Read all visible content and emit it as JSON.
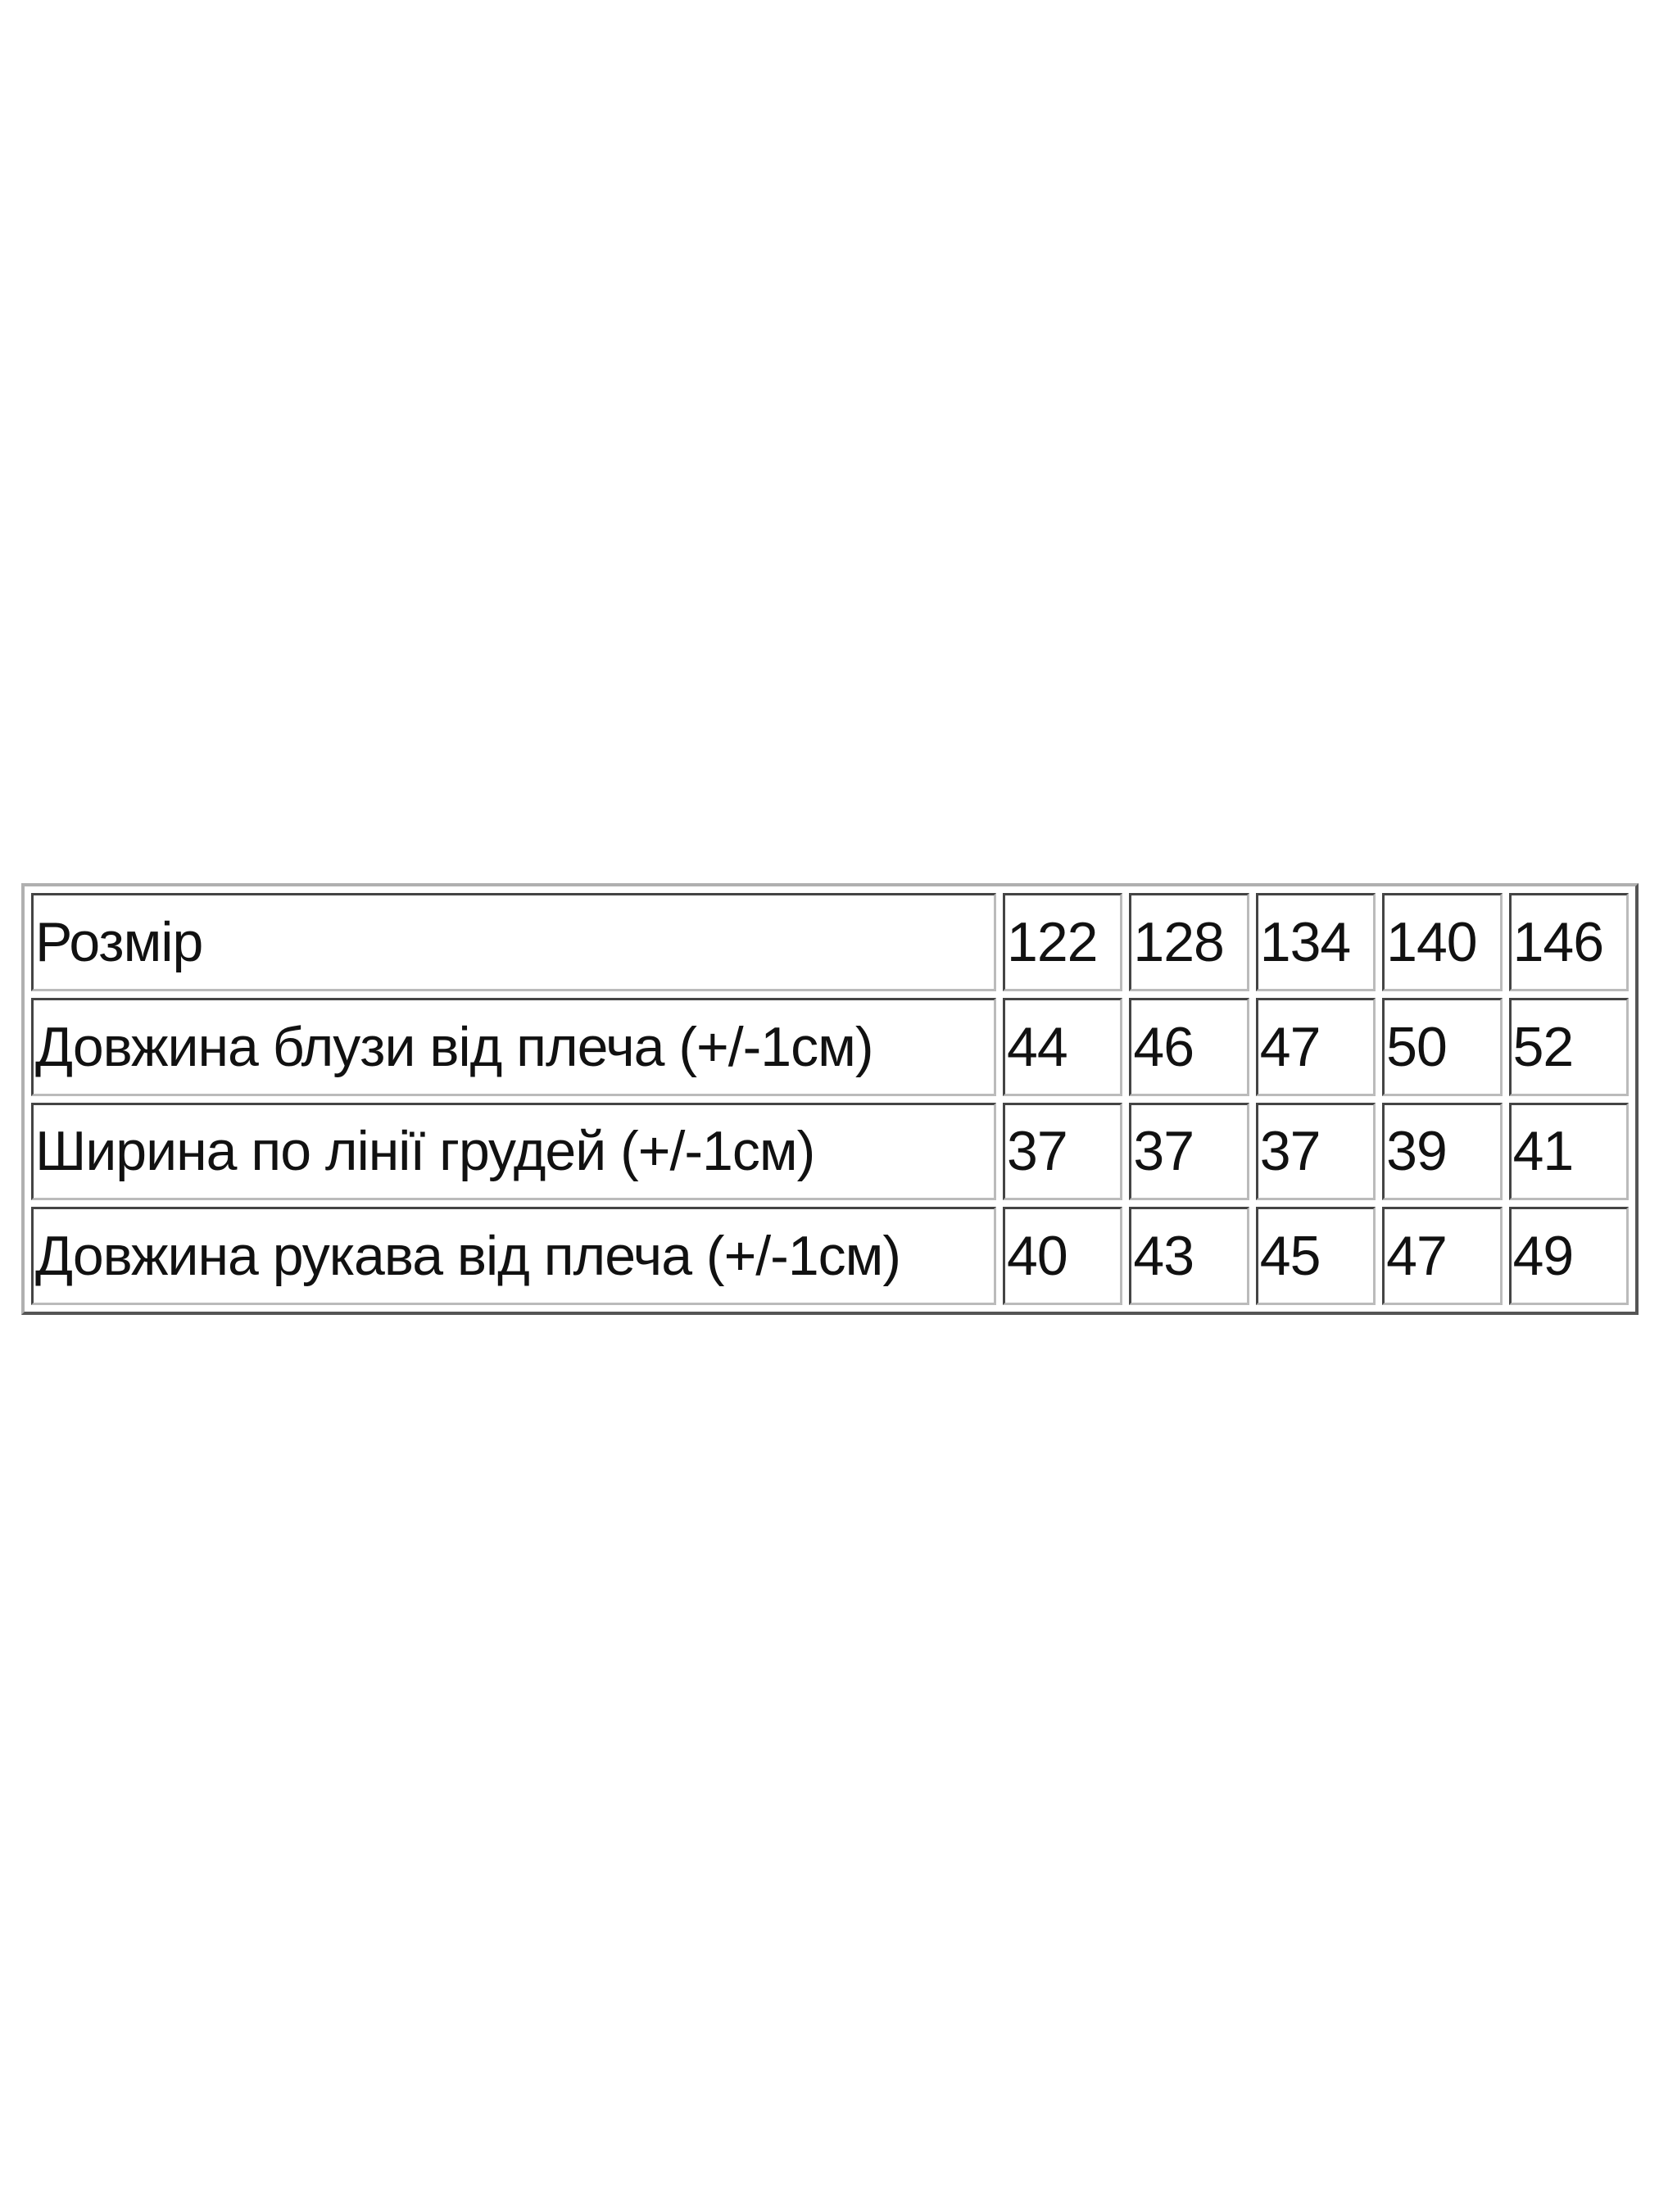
{
  "size_table": {
    "header": {
      "label": "Розмір",
      "sizes": [
        "122",
        "128",
        "134",
        "140",
        "146"
      ]
    },
    "rows": [
      {
        "label": "Довжина блузи від плеча (+/-1см)",
        "values": [
          "44",
          "46",
          "47",
          "50",
          "52"
        ]
      },
      {
        "label": "Ширина по лінії грудей (+/-1см)",
        "values": [
          "37",
          "37",
          "37",
          "39",
          "41"
        ]
      },
      {
        "label": "Довжина рукава від плеча (+/-1см)",
        "values": [
          "40",
          "43",
          "45",
          "47",
          "49"
        ]
      }
    ]
  }
}
